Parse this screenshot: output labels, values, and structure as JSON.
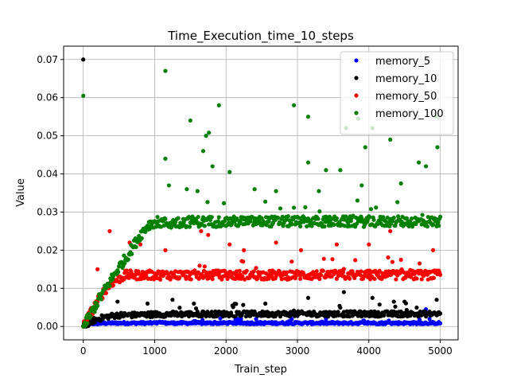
{
  "chart_data": {
    "type": "scatter",
    "title": "Time_Execution_time_10_steps",
    "xlabel": "Train_step",
    "ylabel": "Value",
    "xlim": [
      -275,
      5250
    ],
    "ylim": [
      -0.0035,
      0.0735
    ],
    "x_ticks": [
      0,
      1000,
      2000,
      3000,
      4000,
      5000
    ],
    "x_tick_labels": [
      "0",
      "1000",
      "2000",
      "3000",
      "4000",
      "5000"
    ],
    "y_ticks": [
      0.0,
      0.01,
      0.02,
      0.03,
      0.04,
      0.05,
      0.06,
      0.07
    ],
    "y_tick_labels": [
      "0.00",
      "0.01",
      "0.02",
      "0.03",
      "0.04",
      "0.05",
      "0.06",
      "0.07"
    ],
    "grid": true,
    "legend_position": "top-right",
    "series": [
      {
        "name": "memory_5",
        "color": "#0000ff",
        "baseline_points": [
          [
            0,
            0.0
          ],
          [
            100,
            0.0008
          ],
          [
            200,
            0.0008
          ],
          [
            400,
            0.0009
          ],
          [
            600,
            0.0009
          ],
          [
            800,
            0.0009
          ],
          [
            1000,
            0.0009
          ],
          [
            1500,
            0.0009
          ],
          [
            2000,
            0.0009
          ],
          [
            2500,
            0.0009
          ],
          [
            3000,
            0.0009
          ],
          [
            3500,
            0.0009
          ],
          [
            4000,
            0.0009
          ],
          [
            4500,
            0.0009
          ],
          [
            5000,
            0.0009
          ]
        ],
        "outliers": [
          [
            4800,
            0.0045
          ]
        ]
      },
      {
        "name": "memory_10",
        "color": "#000000",
        "baseline_points": [
          [
            0,
            0.0
          ],
          [
            150,
            0.0016
          ],
          [
            300,
            0.0025
          ],
          [
            500,
            0.003
          ],
          [
            700,
            0.003
          ],
          [
            1000,
            0.0032
          ],
          [
            2000,
            0.0033
          ],
          [
            3000,
            0.0033
          ],
          [
            4000,
            0.0033
          ],
          [
            5000,
            0.0033
          ]
        ],
        "outliers": [
          [
            0,
            0.07
          ],
          [
            480,
            0.0065
          ],
          [
            900,
            0.006
          ],
          [
            1250,
            0.007
          ],
          [
            1550,
            0.006
          ],
          [
            2550,
            0.006
          ],
          [
            3150,
            0.0075
          ],
          [
            3650,
            0.009
          ],
          [
            4050,
            0.0075
          ],
          [
            4350,
            0.0065
          ],
          [
            4500,
            0.0065
          ],
          [
            4950,
            0.007
          ]
        ]
      },
      {
        "name": "memory_50",
        "color": "#ff0000",
        "baseline_points": [
          [
            0,
            0.0
          ],
          [
            100,
            0.0035
          ],
          [
            200,
            0.0065
          ],
          [
            300,
            0.0095
          ],
          [
            400,
            0.0115
          ],
          [
            500,
            0.0125
          ],
          [
            600,
            0.0135
          ],
          [
            800,
            0.0135
          ],
          [
            1000,
            0.0135
          ],
          [
            2000,
            0.0135
          ],
          [
            3000,
            0.0135
          ],
          [
            4000,
            0.0135
          ],
          [
            5000,
            0.0135
          ]
        ],
        "outliers": [
          [
            200,
            0.015
          ],
          [
            370,
            0.025
          ],
          [
            650,
            0.022
          ],
          [
            800,
            0.0215
          ],
          [
            1150,
            0.02
          ],
          [
            1650,
            0.025
          ],
          [
            1750,
            0.024
          ],
          [
            2050,
            0.0215
          ],
          [
            2250,
            0.02
          ],
          [
            2700,
            0.022
          ],
          [
            3050,
            0.02
          ],
          [
            3550,
            0.0215
          ],
          [
            4000,
            0.0215
          ],
          [
            4300,
            0.025
          ],
          [
            4450,
            0.0175
          ],
          [
            4900,
            0.02
          ]
        ]
      },
      {
        "name": "memory_100",
        "color": "#008000",
        "baseline_points": [
          [
            0,
            0.0
          ],
          [
            100,
            0.003
          ],
          [
            200,
            0.0065
          ],
          [
            300,
            0.0095
          ],
          [
            400,
            0.0125
          ],
          [
            500,
            0.0155
          ],
          [
            600,
            0.018
          ],
          [
            700,
            0.021
          ],
          [
            800,
            0.024
          ],
          [
            900,
            0.0265
          ],
          [
            1000,
            0.0275
          ],
          [
            1200,
            0.027
          ],
          [
            1500,
            0.0275
          ],
          [
            2000,
            0.0275
          ],
          [
            2500,
            0.0275
          ],
          [
            3000,
            0.0275
          ],
          [
            3500,
            0.0275
          ],
          [
            4000,
            0.0275
          ],
          [
            4500,
            0.0275
          ],
          [
            5000,
            0.0275
          ]
        ],
        "outliers": [
          [
            0,
            0.0605
          ],
          [
            1150,
            0.067
          ],
          [
            1150,
            0.044
          ],
          [
            1500,
            0.054
          ],
          [
            1680,
            0.046
          ],
          [
            1720,
            0.05
          ],
          [
            1760,
            0.0508
          ],
          [
            1810,
            0.042
          ],
          [
            1900,
            0.058
          ],
          [
            2050,
            0.0405
          ],
          [
            2950,
            0.058
          ],
          [
            3150,
            0.055
          ],
          [
            3150,
            0.043
          ],
          [
            3400,
            0.041
          ],
          [
            3600,
            0.041
          ],
          [
            3680,
            0.052
          ],
          [
            3850,
            0.0545
          ],
          [
            3950,
            0.047
          ],
          [
            4050,
            0.052
          ],
          [
            4300,
            0.049
          ],
          [
            4700,
            0.043
          ],
          [
            4800,
            0.042
          ],
          [
            4950,
            0.055
          ],
          [
            4960,
            0.047
          ],
          [
            1200,
            0.037
          ],
          [
            1450,
            0.036
          ],
          [
            1600,
            0.0355
          ],
          [
            2400,
            0.036
          ],
          [
            2700,
            0.0355
          ],
          [
            3300,
            0.0355
          ],
          [
            3900,
            0.037
          ],
          [
            4450,
            0.0375
          ]
        ]
      }
    ]
  }
}
